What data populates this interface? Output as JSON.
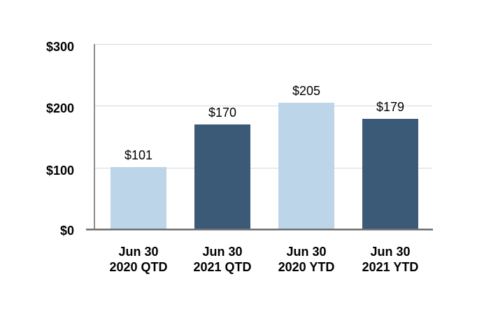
{
  "chart_data": {
    "type": "bar",
    "title": "",
    "categories": [
      {
        "line1": "Jun 30",
        "line2": "2020 QTD"
      },
      {
        "line1": "Jun 30",
        "line2": "2021 QTD"
      },
      {
        "line1": "Jun 30",
        "line2": "2020 YTD"
      },
      {
        "line1": "Jun 30",
        "line2": "2021 YTD"
      }
    ],
    "values": [
      101,
      170,
      205,
      179
    ],
    "data_labels": [
      "$101",
      "$170",
      "$205",
      "$179"
    ],
    "y_axis": {
      "tick_labels": [
        "$300",
        "$200",
        "$100",
        "$0"
      ],
      "tick_values": [
        300,
        200,
        100,
        0
      ],
      "min": 0,
      "max": 300
    },
    "xlabel": "",
    "ylabel": "",
    "grid": "horizontal gridlines at 100, 200, 300",
    "legend": "none",
    "colors": {
      "light_blue_bar": "#BCD5E8",
      "dark_blue_bar": "#3A5A78",
      "gridline": "#D9D9D9",
      "axis_line": "#6E6E6E",
      "text": "#000000"
    },
    "bar_color_pattern": [
      "light_blue_bar",
      "dark_blue_bar",
      "light_blue_bar",
      "dark_blue_bar"
    ]
  }
}
